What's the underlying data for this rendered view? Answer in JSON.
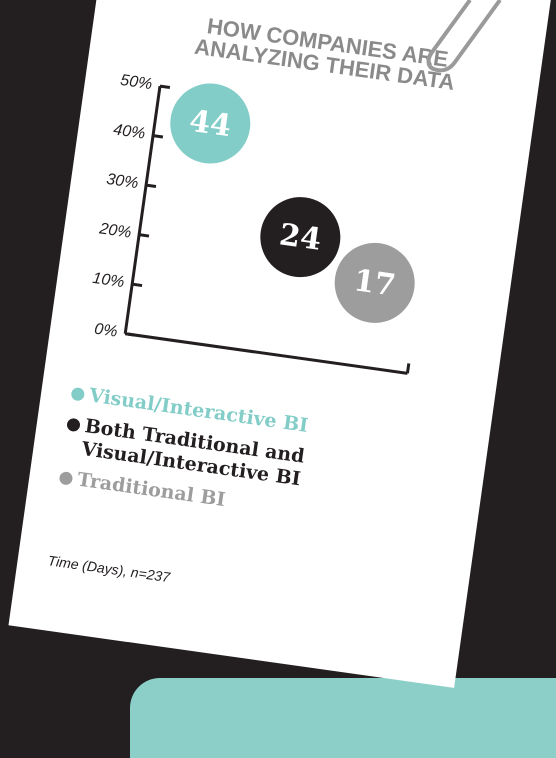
{
  "chart_data": {
    "type": "bubble",
    "title": "HOW COMPANIES ARE ANALYZING THEIR DATA",
    "series": [
      {
        "name": "Visual/Interactive BI",
        "color": "#82cdc7",
        "values": [
          44
        ]
      },
      {
        "name": "Both Traditional and Visual/Interactive BI",
        "color": "#231f20",
        "values": [
          24
        ]
      },
      {
        "name": "Traditional BI",
        "color": "#9d9d9d",
        "values": [
          17
        ]
      }
    ],
    "ylim": [
      0,
      50
    ],
    "yticks": [
      {
        "value": 0,
        "label": "0%"
      },
      {
        "value": 10,
        "label": "10%"
      },
      {
        "value": 20,
        "label": "20%"
      },
      {
        "value": 30,
        "label": "30%"
      },
      {
        "value": 40,
        "label": "40%"
      },
      {
        "value": 50,
        "label": "50%"
      }
    ],
    "note": "Time (Days), n=237"
  }
}
